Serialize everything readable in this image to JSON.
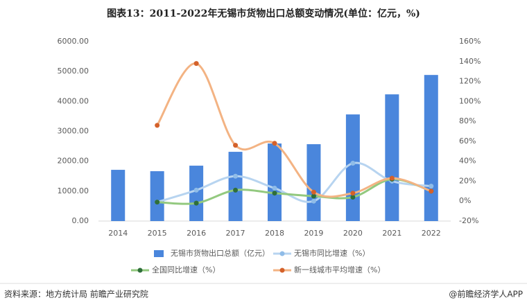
{
  "chart_data": {
    "type": "bar",
    "title": "图表13：2011-2022年无锡市货物出口总额变动情况(单位：亿元，%)",
    "categories": [
      "2014",
      "2015",
      "2016",
      "2017",
      "2018",
      "2019",
      "2020",
      "2021",
      "2022"
    ],
    "series": [
      {
        "name": "无锡市货物出口总额（亿元）",
        "type": "bar",
        "color": "#4a86dc",
        "values": [
          1713,
          1667,
          1852,
          2315,
          2593,
          2570,
          3565,
          4236,
          4884
        ]
      },
      {
        "name": "无锡市同比增速（%）",
        "type": "line",
        "axis": "y2",
        "color": "#b7d4f0",
        "marker_color": "#8fbce8",
        "values": [
          null,
          -1,
          11,
          25,
          13,
          0,
          38,
          20,
          15
        ]
      },
      {
        "name": "全国同比增速（%）",
        "type": "line",
        "axis": "y2",
        "color": "#93c97f",
        "marker_color": "#2f6e3a",
        "values": [
          null,
          -1,
          -2,
          11,
          8,
          5,
          4,
          22,
          10
        ]
      },
      {
        "name": "新一线城市平均增速（%）",
        "type": "line",
        "axis": "y2",
        "color": "#f3b383",
        "marker_color": "#d4612a",
        "values": [
          null,
          76,
          138,
          56,
          58,
          9,
          8,
          23,
          10
        ]
      }
    ],
    "ylim": [
      0,
      6000
    ],
    "yticks": [
      {
        "value": 0,
        "label": "0.00"
      },
      {
        "value": 1000,
        "label": "1000.00"
      },
      {
        "value": 2000,
        "label": "2000.00"
      },
      {
        "value": 3000,
        "label": "3000.00"
      },
      {
        "value": 4000,
        "label": "4000.00"
      },
      {
        "value": 5000,
        "label": "5000.00"
      },
      {
        "value": 6000,
        "label": "6000.00"
      }
    ],
    "y2lim": [
      -20,
      160
    ],
    "y2ticks": [
      {
        "value": -20,
        "label": "-20%"
      },
      {
        "value": 0,
        "label": "0%"
      },
      {
        "value": 20,
        "label": "20%"
      },
      {
        "value": 40,
        "label": "40%"
      },
      {
        "value": 60,
        "label": "60%"
      },
      {
        "value": 80,
        "label": "80%"
      },
      {
        "value": 100,
        "label": "100%"
      },
      {
        "value": 120,
        "label": "120%"
      },
      {
        "value": 140,
        "label": "140%"
      },
      {
        "value": 160,
        "label": "160%"
      }
    ],
    "legend": "bottom",
    "source": "资料来源：地方统计局 前瞻产业研究院",
    "credit": "@前瞻经济学人APP"
  }
}
